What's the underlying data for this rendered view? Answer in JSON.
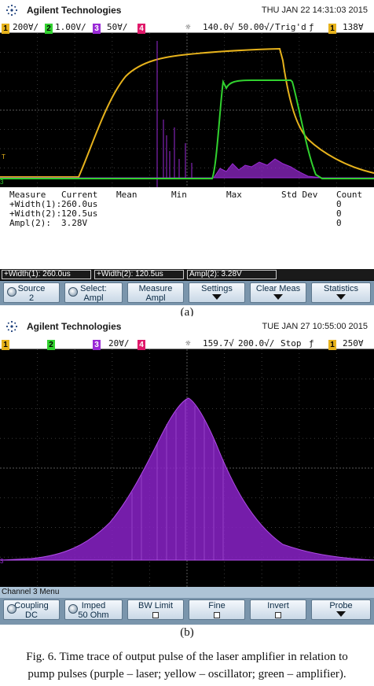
{
  "scope_a": {
    "brand": "Agilent Technologies",
    "datetime": "THU JAN 22 14:31:03 2015",
    "status": {
      "ch1_badge": "1",
      "ch1": "200∀/",
      "ch2_badge": "2",
      "ch2": "1.00V/",
      "ch3_badge": "3",
      "ch3": "50∀/",
      "ch4_badge": "4",
      "time_pos": "140.0√",
      "time_div": "50.00√/",
      "trig_state": "Trig'd",
      "trig_icon": "ƒ",
      "trig_ch_badge": "1",
      "trig_level": "138∀"
    },
    "measure": {
      "headers": [
        "Measure",
        "Current",
        "Mean",
        "Min",
        "Max",
        "Std Dev",
        "Count"
      ],
      "rows": [
        {
          "name": "+Width(1):",
          "current": "260.0us",
          "count": "0"
        },
        {
          "name": "+Width(2):",
          "current": "120.5us",
          "count": "0"
        },
        {
          "name": "Ampl(2):",
          "current": "3.28V",
          "count": "0"
        }
      ]
    },
    "readouts": [
      "+Width(1): 260.0us",
      "+Width(2): 120.5us",
      "Ampl(2): 3.28V"
    ],
    "softkeys": [
      {
        "l1": "Source",
        "l2": "2"
      },
      {
        "l1": "Select:",
        "l2": "Ampl"
      },
      {
        "l1": "Measure",
        "l2": "Ampl"
      },
      {
        "l1": "Settings",
        "l2": ""
      },
      {
        "l1": "Clear Meas",
        "l2": ""
      },
      {
        "l1": "Statistics",
        "l2": ""
      }
    ],
    "label": "(a)"
  },
  "scope_b": {
    "brand": "Agilent Technologies",
    "datetime": "TUE JAN 27 10:55:00 2015",
    "status": {
      "ch1_badge": "1",
      "ch2_badge": "2",
      "ch3_badge": "3",
      "ch3": "20∀/",
      "ch4_badge": "4",
      "time_pos": "159.7√",
      "time_div": "200.0√/",
      "trig_state": "Stop",
      "trig_icon": "ƒ",
      "trig_ch_badge": "1",
      "trig_level": "250∀"
    },
    "menu_title": "Channel 3  Menu",
    "softkeys": [
      {
        "l1": "Coupling",
        "l2": "DC"
      },
      {
        "l1": "Imped",
        "l2": "50 Ohm"
      },
      {
        "l1": "BW Limit",
        "l2": ""
      },
      {
        "l1": "Fine",
        "l2": ""
      },
      {
        "l1": "Invert",
        "l2": ""
      },
      {
        "l1": "Probe",
        "l2": ""
      }
    ],
    "label": "(b)"
  },
  "caption": {
    "line1": "Fig. 6. Time trace of output pulse of the laser amplifier in relation to",
    "line2": "pump pulses (purple – laser; yellow – oscillator; green – amplifier)."
  },
  "colors": {
    "ch1": "#e6b21c",
    "ch2": "#31d12f",
    "ch3": "#9a2ad6",
    "ch4": "#e0196a",
    "key_bar": "#7a95ac"
  }
}
